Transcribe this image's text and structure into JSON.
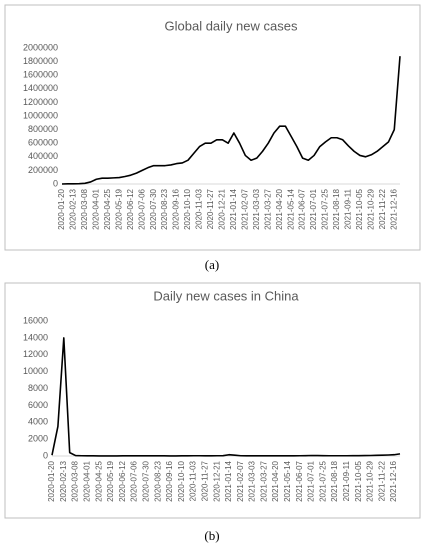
{
  "chart_data": [
    {
      "type": "line",
      "title": "Global daily new cases",
      "caption": "(a)",
      "categories": [
        "2020-01-20",
        null,
        "2020-02-13",
        null,
        "2020-03-08",
        null,
        "2020-04-01",
        null,
        "2020-04-25",
        null,
        "2020-05-19",
        null,
        "2020-06-12",
        null,
        "2020-07-06",
        null,
        "2020-07-30",
        null,
        "2020-08-23",
        null,
        "2020-09-16",
        null,
        "2020-10-10",
        null,
        "2020-11-03",
        null,
        "2020-11-27",
        null,
        "2020-12-21",
        null,
        "2021-01-14",
        null,
        "2021-02-07",
        null,
        "2021-03-03",
        null,
        "2021-03-27",
        null,
        "2021-04-20",
        null,
        "2021-05-14",
        null,
        "2021-06-07",
        null,
        "2021-07-01",
        null,
        "2021-07-25",
        null,
        "2021-08-18",
        null,
        "2021-09-11",
        null,
        "2021-10-05",
        null,
        "2021-10-29",
        null,
        "2021-11-22",
        null,
        "2021-12-16",
        null
      ],
      "values": [
        0,
        2000,
        3000,
        5000,
        10000,
        30000,
        70000,
        85000,
        85000,
        90000,
        95000,
        110000,
        130000,
        160000,
        200000,
        240000,
        270000,
        270000,
        270000,
        280000,
        300000,
        310000,
        350000,
        450000,
        550000,
        600000,
        600000,
        650000,
        650000,
        600000,
        750000,
        600000,
        420000,
        350000,
        380000,
        480000,
        600000,
        750000,
        850000,
        850000,
        700000,
        550000,
        380000,
        350000,
        420000,
        550000,
        620000,
        680000,
        680000,
        650000,
        560000,
        480000,
        420000,
        400000,
        430000,
        480000,
        550000,
        620000,
        800000,
        1880000
      ],
      "color": "#000000",
      "ylim": [
        0,
        2000000
      ],
      "yticks": [
        0,
        200000,
        400000,
        600000,
        800000,
        1000000,
        1200000,
        1400000,
        1600000,
        1800000,
        2000000
      ],
      "grid": false
    },
    {
      "type": "line",
      "title": "Daily new cases in China",
      "caption": "(b)",
      "categories": [
        "2020-01-20",
        null,
        "2020-02-13",
        null,
        "2020-03-08",
        null,
        "2020-04-01",
        null,
        "2020-04-25",
        null,
        "2020-05-19",
        null,
        "2020-06-12",
        null,
        "2020-07-06",
        null,
        "2020-07-30",
        null,
        "2020-08-23",
        null,
        "2020-09-16",
        null,
        "2020-10-10",
        null,
        "2020-11-03",
        null,
        "2020-11-27",
        null,
        "2020-12-21",
        null,
        "2021-01-14",
        null,
        "2021-02-07",
        null,
        "2021-03-03",
        null,
        "2021-03-27",
        null,
        "2021-04-20",
        null,
        "2021-05-14",
        null,
        "2021-06-07",
        null,
        "2021-07-01",
        null,
        "2021-07-25",
        null,
        "2021-08-18",
        null,
        "2021-09-11",
        null,
        "2021-10-05",
        null,
        "2021-10-29",
        null,
        "2021-11-22",
        null,
        "2021-12-16",
        null
      ],
      "values": [
        100,
        3500,
        14000,
        400,
        50,
        30,
        20,
        20,
        10,
        10,
        10,
        10,
        20,
        20,
        30,
        20,
        30,
        20,
        20,
        20,
        10,
        10,
        20,
        20,
        30,
        30,
        20,
        20,
        30,
        40,
        150,
        100,
        30,
        20,
        20,
        20,
        20,
        20,
        20,
        20,
        20,
        20,
        30,
        40,
        60,
        50,
        40,
        30,
        30,
        30,
        30,
        40,
        40,
        50,
        60,
        80,
        100,
        120,
        150,
        250
      ],
      "color": "#000000",
      "ylim": [
        0,
        16000
      ],
      "yticks": [
        0,
        2000,
        4000,
        6000,
        8000,
        10000,
        12000,
        14000,
        16000
      ],
      "grid": false
    }
  ]
}
